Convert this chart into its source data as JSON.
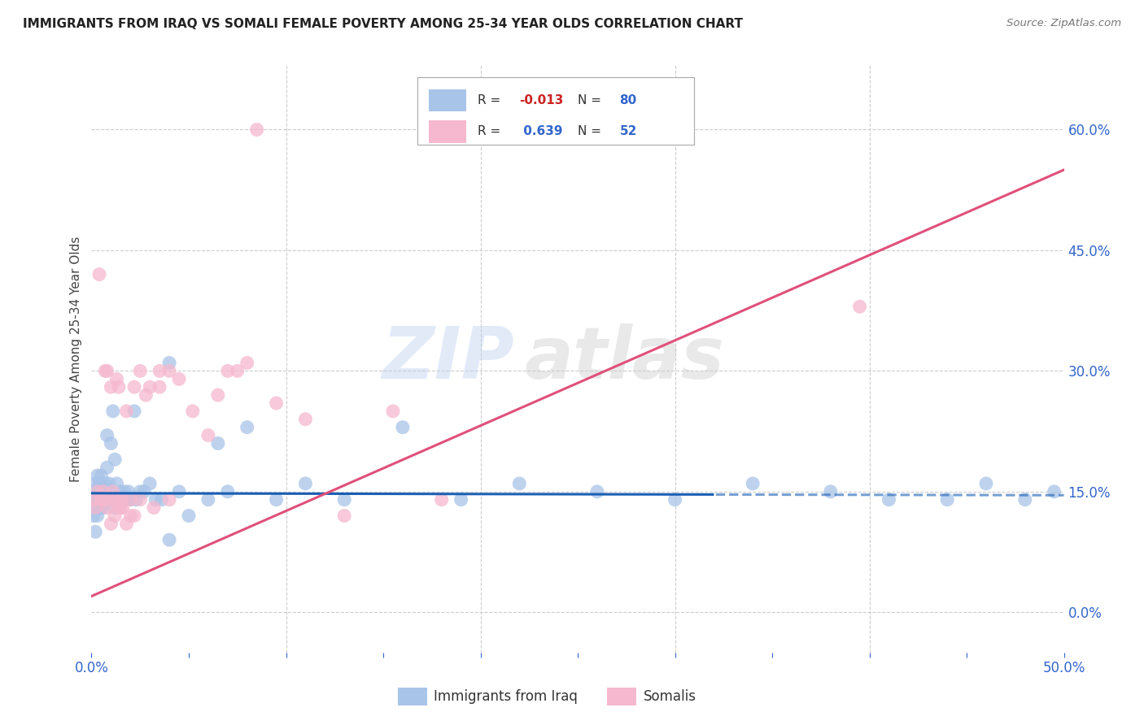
{
  "title": "IMMIGRANTS FROM IRAQ VS SOMALI FEMALE POVERTY AMONG 25-34 YEAR OLDS CORRELATION CHART",
  "source": "Source: ZipAtlas.com",
  "ylabel": "Female Poverty Among 25-34 Year Olds",
  "xlim": [
    0,
    0.5
  ],
  "ylim": [
    -0.05,
    0.68
  ],
  "xticks": [
    0.0,
    0.05,
    0.1,
    0.15,
    0.2,
    0.25,
    0.3,
    0.35,
    0.4,
    0.45,
    0.5
  ],
  "yticks": [
    0.0,
    0.15,
    0.3,
    0.45,
    0.6
  ],
  "ytick_labels": [
    "0.0%",
    "15.0%",
    "30.0%",
    "45.0%",
    "60.0%"
  ],
  "background_color": "#ffffff",
  "grid_color": "#cccccc",
  "watermark_zip": "ZIP",
  "watermark_atlas": "atlas",
  "iraq_color": "#a8c4e8",
  "somali_color": "#f5b8ce",
  "iraq_R": -0.013,
  "iraq_N": 80,
  "somali_R": 0.639,
  "somali_N": 52,
  "iraq_line_color": "#1a5fb4",
  "somali_line_color": "#e0507a",
  "iraq_line_solid_end": 0.32,
  "somali_line_start": 0.0,
  "somali_line_intercept": 0.02,
  "somali_line_slope": 1.06,
  "iraq_line_intercept": 0.148,
  "iraq_line_slope": -0.005,
  "iraq_scatter_x": [
    0.001,
    0.001,
    0.001,
    0.002,
    0.002,
    0.002,
    0.002,
    0.003,
    0.003,
    0.003,
    0.003,
    0.003,
    0.004,
    0.004,
    0.004,
    0.004,
    0.005,
    0.005,
    0.005,
    0.005,
    0.005,
    0.006,
    0.006,
    0.006,
    0.006,
    0.007,
    0.007,
    0.007,
    0.008,
    0.008,
    0.008,
    0.009,
    0.009,
    0.01,
    0.01,
    0.01,
    0.011,
    0.011,
    0.012,
    0.012,
    0.013,
    0.013,
    0.014,
    0.015,
    0.015,
    0.016,
    0.017,
    0.018,
    0.019,
    0.02,
    0.022,
    0.023,
    0.025,
    0.027,
    0.03,
    0.033,
    0.036,
    0.04,
    0.045,
    0.05,
    0.06,
    0.07,
    0.08,
    0.095,
    0.11,
    0.13,
    0.16,
    0.19,
    0.22,
    0.26,
    0.3,
    0.34,
    0.38,
    0.41,
    0.44,
    0.46,
    0.48,
    0.495,
    0.04,
    0.065
  ],
  "iraq_scatter_y": [
    0.14,
    0.15,
    0.12,
    0.13,
    0.16,
    0.14,
    0.1,
    0.15,
    0.14,
    0.17,
    0.12,
    0.13,
    0.14,
    0.15,
    0.13,
    0.16,
    0.14,
    0.15,
    0.13,
    0.17,
    0.16,
    0.14,
    0.13,
    0.15,
    0.14,
    0.14,
    0.16,
    0.15,
    0.22,
    0.18,
    0.14,
    0.16,
    0.14,
    0.21,
    0.15,
    0.14,
    0.25,
    0.14,
    0.13,
    0.19,
    0.14,
    0.16,
    0.14,
    0.14,
    0.15,
    0.14,
    0.15,
    0.14,
    0.15,
    0.14,
    0.25,
    0.14,
    0.15,
    0.15,
    0.16,
    0.14,
    0.14,
    0.09,
    0.15,
    0.12,
    0.14,
    0.15,
    0.23,
    0.14,
    0.16,
    0.14,
    0.23,
    0.14,
    0.16,
    0.15,
    0.14,
    0.16,
    0.15,
    0.14,
    0.14,
    0.16,
    0.14,
    0.15,
    0.31,
    0.21
  ],
  "somali_scatter_x": [
    0.001,
    0.002,
    0.003,
    0.004,
    0.005,
    0.006,
    0.007,
    0.008,
    0.009,
    0.01,
    0.011,
    0.012,
    0.013,
    0.014,
    0.015,
    0.016,
    0.018,
    0.02,
    0.022,
    0.025,
    0.028,
    0.032,
    0.035,
    0.04,
    0.045,
    0.052,
    0.06,
    0.07,
    0.08,
    0.095,
    0.11,
    0.13,
    0.155,
    0.18,
    0.035,
    0.04,
    0.065,
    0.075,
    0.03,
    0.025,
    0.015,
    0.012,
    0.02,
    0.018,
    0.022,
    0.008,
    0.006,
    0.01,
    0.014,
    0.016,
    0.085,
    0.395
  ],
  "somali_scatter_y": [
    0.14,
    0.13,
    0.15,
    0.42,
    0.14,
    0.15,
    0.3,
    0.3,
    0.14,
    0.28,
    0.15,
    0.14,
    0.29,
    0.28,
    0.14,
    0.13,
    0.25,
    0.14,
    0.28,
    0.14,
    0.27,
    0.13,
    0.3,
    0.14,
    0.29,
    0.25,
    0.22,
    0.3,
    0.31,
    0.26,
    0.24,
    0.12,
    0.25,
    0.14,
    0.28,
    0.3,
    0.27,
    0.3,
    0.28,
    0.3,
    0.13,
    0.12,
    0.12,
    0.11,
    0.12,
    0.13,
    0.14,
    0.11,
    0.13,
    0.14,
    0.6,
    0.38
  ]
}
